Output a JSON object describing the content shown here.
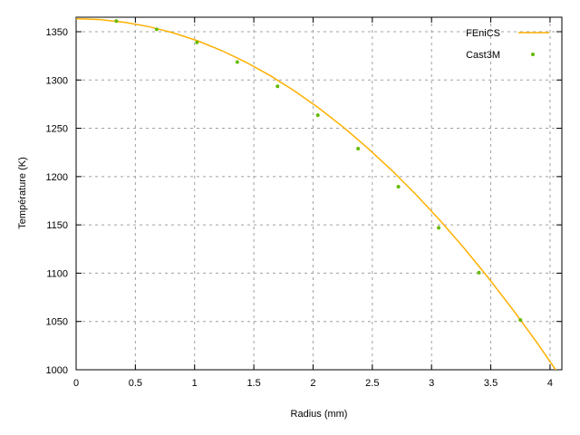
{
  "chart_data": {
    "type": "line",
    "title": "",
    "xlabel": "Radius (mm)",
    "ylabel": "Température (K)",
    "xlim": [
      0,
      4.1
    ],
    "ylim": [
      1000,
      1365
    ],
    "xticks": [
      0,
      0.5,
      1,
      1.5,
      2,
      2.5,
      3,
      3.5,
      4
    ],
    "xtick_labels": [
      "0",
      "0.5",
      "1",
      "1.5",
      "2",
      "2.5",
      "3",
      "3.5",
      "4"
    ],
    "yticks": [
      1000,
      1050,
      1100,
      1150,
      1200,
      1250,
      1300,
      1350
    ],
    "ytick_labels": [
      "1000",
      "1050",
      "1100",
      "1150",
      "1200",
      "1250",
      "1300",
      "1350"
    ],
    "grid": true,
    "legend_position": "top-right",
    "series": [
      {
        "name": "FEniCS",
        "style": "line",
        "color": "#ffb000",
        "x": [
          0,
          0.205,
          0.41,
          0.615,
          0.82,
          1.025,
          1.23,
          1.435,
          1.64,
          1.845,
          2.05,
          2.255,
          2.46,
          2.665,
          2.87,
          3.075,
          3.28,
          3.485,
          3.69,
          3.895,
          4.1
        ],
        "y": [
          1363.5,
          1362.5,
          1359.7,
          1355.2,
          1348.8,
          1340.6,
          1330.4,
          1318.3,
          1304.4,
          1288.5,
          1270.8,
          1251.2,
          1229.6,
          1206.4,
          1181.2,
          1154.1,
          1125.1,
          1094.3,
          1061.6,
          1027.1,
          990.7
        ]
      },
      {
        "name": "Cast3M",
        "style": "points",
        "color": "#66bb00",
        "x": [
          0.34,
          0.68,
          1.02,
          1.36,
          1.7,
          2.04,
          2.38,
          2.72,
          3.06,
          3.4,
          3.75
        ],
        "y": [
          1361.0,
          1352.5,
          1339.0,
          1318.5,
          1293.5,
          1263.5,
          1229.0,
          1189.5,
          1147.0,
          1100.5,
          1051.5
        ]
      }
    ]
  }
}
